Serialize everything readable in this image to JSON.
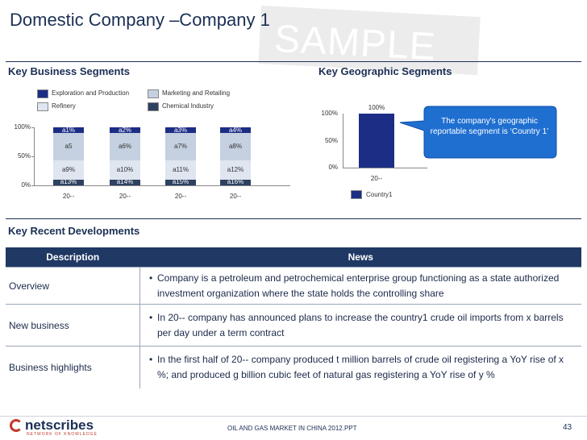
{
  "title": "Domestic Company –Company 1",
  "watermark": "SAMPLE",
  "sections": {
    "business": "Key Business Segments",
    "geo": "Key Geographic Segments",
    "developments": "Key Recent Developments"
  },
  "chart_data": [
    {
      "type": "bar",
      "stacked": true,
      "categories": [
        "20--",
        "20--",
        "20--",
        "20--"
      ],
      "yticks": [
        "0%",
        "50%",
        "100%"
      ],
      "legend": [
        {
          "name": "Exploration and Production",
          "color": "#1c2d86"
        },
        {
          "name": "Marketing and Retailing",
          "color": "#c5d0e0"
        },
        {
          "name": "Refinery",
          "color": "#dfe6f0"
        },
        {
          "name": "Chemical Industry",
          "color": "#2d4161"
        }
      ],
      "series": [
        {
          "name": "Chemical Industry",
          "labels": [
            "a13%",
            "a14%",
            "a15%",
            "a16%"
          ],
          "values": [
            10,
            10,
            10,
            10
          ],
          "color": "#2d4161",
          "text_color": "#ffffff"
        },
        {
          "name": "Refinery",
          "labels": [
            "a9%",
            "a10%",
            "a11%",
            "a12%"
          ],
          "values": [
            33,
            33,
            33,
            33
          ],
          "color": "#dfe6f0",
          "text_color": "#333333"
        },
        {
          "name": "Marketing and Retailing",
          "labels": [
            "a5",
            "a6%",
            "a7%",
            "a8%"
          ],
          "values": [
            47,
            47,
            47,
            47
          ],
          "color": "#c5d0e0",
          "text_color": "#333333"
        },
        {
          "name": "Exploration and Production",
          "labels": [
            "a1%",
            "a2%",
            "a3%",
            "a4%"
          ],
          "values": [
            10,
            10,
            10,
            10
          ],
          "color": "#1c2d86",
          "text_color": "#ffffff"
        }
      ]
    },
    {
      "type": "bar",
      "categories": [
        "20--"
      ],
      "yticks": [
        "0%",
        "50%",
        "100%"
      ],
      "ylim": [
        0,
        100
      ],
      "series": [
        {
          "name": "Country1",
          "values": [
            100
          ],
          "labels": [
            "100%"
          ],
          "color": "#1c2d86"
        }
      ],
      "legend": [
        {
          "name": "Country1",
          "color": "#1c2d86"
        }
      ]
    }
  ],
  "callout": "The company's geographic reportable segment is ‘Country 1’",
  "callout_color": "#1f6fd1",
  "table": {
    "headers": [
      "Description",
      "News"
    ],
    "rows": [
      {
        "desc": "Overview",
        "news": "Company is a petroleum and petrochemical enterprise group functioning as a state authorized investment organization where the state holds the controlling share"
      },
      {
        "desc": "New business",
        "news": "In 20-- company has announced plans to increase the country1 crude oil imports from x barrels per day under a term contract"
      },
      {
        "desc": "Business highlights",
        "news": "In the first half of 20-- company produced t million barrels of crude oil registering a YoY rise of x %; and produced g billion cubic feet of natural gas registering a YoY rise of y %"
      }
    ]
  },
  "footer": {
    "logo": "netscribes",
    "tagline": "NETWORK OF KNOWLEDGE",
    "text": "OIL AND GAS MARKET IN CHINA 2012.PPT",
    "page": "43"
  }
}
